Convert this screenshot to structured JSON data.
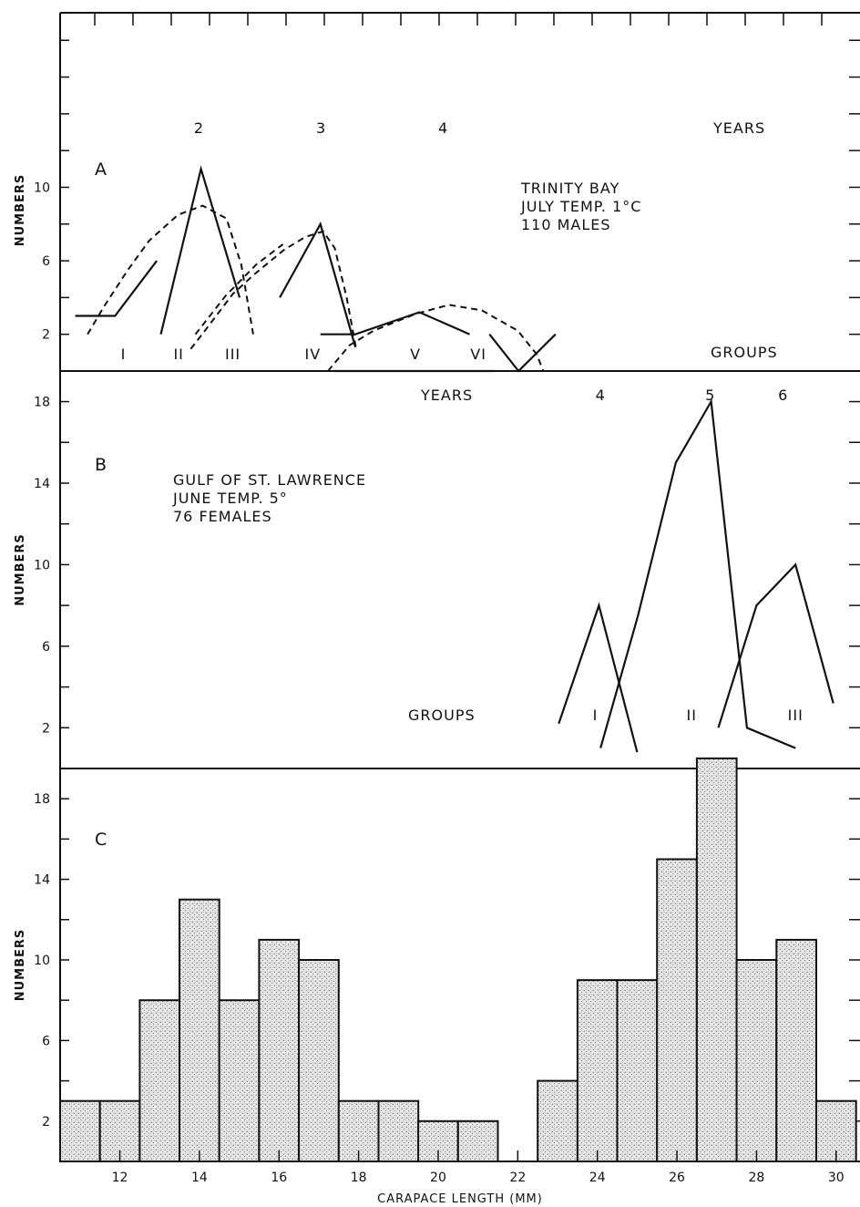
{
  "chart_data": [
    {
      "panel": "A",
      "type": "line",
      "ylabel": "NUMBERS",
      "ylim": [
        0,
        19.5
      ],
      "yticks": [
        2,
        6,
        10
      ],
      "year_marks": [
        {
          "label": "2",
          "x": 13.99
        },
        {
          "label": "3",
          "x": 17.06
        },
        {
          "label": "4",
          "x": 20.13
        }
      ],
      "years_label": "YEARS",
      "groups_label": "GROUPS",
      "group_labels": [
        {
          "label": "I",
          "x": 12.09
        },
        {
          "label": "II",
          "x": 13.48
        },
        {
          "label": "III",
          "x": 14.84
        },
        {
          "label": "IV",
          "x": 16.85
        },
        {
          "label": "V",
          "x": 19.43
        },
        {
          "label": "VI",
          "x": 21.01
        }
      ],
      "annotation": [
        "TRINITY BAY",
        "JULY TEMP. 1°C",
        "110 MALES"
      ],
      "series": [
        {
          "style": "solid",
          "x": [
            10.88,
            11.88,
            12.93
          ],
          "y": [
            3,
            3,
            6
          ]
        },
        {
          "style": "solid",
          "x": [
            13.03,
            14.04,
            15.01
          ],
          "y": [
            2,
            11,
            4
          ]
        },
        {
          "style": "solid",
          "x": [
            16.02,
            17.04,
            17.92
          ],
          "y": [
            4,
            8,
            1.3
          ]
        },
        {
          "style": "solid",
          "x": [
            17.04,
            17.92,
            19.53,
            20.79
          ],
          "y": [
            2,
            2,
            3.2,
            2
          ]
        },
        {
          "style": "solid",
          "x": [
            21.29,
            22.02,
            22.95
          ],
          "y": [
            2,
            0,
            2
          ]
        },
        {
          "style": "solid",
          "x": [
            17.35,
            21.41
          ],
          "y": [
            0,
            0
          ]
        },
        {
          "style": "dashed",
          "x": [
            11.19,
            11.6,
            12.2,
            12.74,
            13.46,
            14.08,
            14.68,
            15.05,
            15.35
          ],
          "y": [
            2,
            3.5,
            5.5,
            7.1,
            8.5,
            9,
            8.3,
            5.8,
            2
          ]
        },
        {
          "style": "dashed",
          "x": [
            13.78,
            14.07,
            14.84,
            15.4,
            16.13,
            16.66,
            17.11,
            17.4,
            17.7,
            17.94
          ],
          "y": [
            1.2,
            2,
            4.2,
            5.3,
            6.6,
            7.3,
            7.6,
            6.7,
            4,
            1.2
          ]
        },
        {
          "style": "dashed",
          "x": [
            13.9,
            14.66,
            15.43,
            16.1
          ],
          "y": [
            2,
            4.1,
            5.8,
            6.9
          ]
        },
        {
          "style": "dashed",
          "x": [
            17.23,
            17.77,
            18.38,
            19.42,
            20.27,
            21.1,
            22.0,
            22.48,
            22.64
          ],
          "y": [
            0,
            1.4,
            2.2,
            3.1,
            3.6,
            3.3,
            2.2,
            0.9,
            0
          ]
        }
      ]
    },
    {
      "panel": "B",
      "type": "line",
      "ylabel": "NUMBERS",
      "ylim": [
        0,
        19.5
      ],
      "yticks": [
        2,
        6,
        10,
        14,
        18
      ],
      "year_marks": [
        {
          "label": "4",
          "x": 24.08
        },
        {
          "label": "5",
          "x": 26.84
        },
        {
          "label": "6",
          "x": 28.67
        }
      ],
      "years_label": "YEARS",
      "groups_label": "GROUPS",
      "group_labels": [
        {
          "label": "I",
          "x": 23.95
        },
        {
          "label": "II",
          "x": 26.37
        },
        {
          "label": "III",
          "x": 28.98
        }
      ],
      "annotation": [
        "GULF OF ST. LAWRENCE",
        "JUNE TEMP. 5°",
        "76 FEMALES"
      ],
      "series": [
        {
          "style": "solid",
          "x": [
            23.03,
            24.04,
            25.0
          ],
          "y": [
            2.2,
            8,
            0.8
          ]
        },
        {
          "style": "solid",
          "x": [
            24.08,
            25.02,
            25.97,
            26.86,
            27.76,
            28.98
          ],
          "y": [
            1,
            7.5,
            15,
            18,
            2,
            1
          ]
        },
        {
          "style": "solid",
          "x": [
            27.04,
            28.0,
            28.98,
            29.93
          ],
          "y": [
            2,
            8,
            10,
            3.2
          ]
        }
      ]
    },
    {
      "panel": "C",
      "type": "bar",
      "title": "",
      "xlabel": "CARAPACE LENGTH (MM)",
      "ylabel": "NUMBERS",
      "ylim": [
        0,
        19.5
      ],
      "xlim": [
        10.5,
        30.6
      ],
      "xticks": [
        12,
        14,
        16,
        18,
        20,
        22,
        24,
        26,
        28,
        30
      ],
      "yticks": [
        2,
        6,
        10,
        14,
        18
      ],
      "categories": [
        11,
        12,
        13,
        14,
        15,
        16,
        17,
        18,
        19,
        20,
        21,
        23,
        24,
        25,
        26,
        27,
        28,
        29,
        30
      ],
      "values": [
        3,
        3,
        8,
        13,
        8,
        11,
        10,
        3,
        3,
        2,
        2,
        4,
        9,
        9,
        15,
        20,
        10,
        11,
        3
      ]
    }
  ],
  "panel_letters": [
    "A",
    "B",
    "C"
  ]
}
